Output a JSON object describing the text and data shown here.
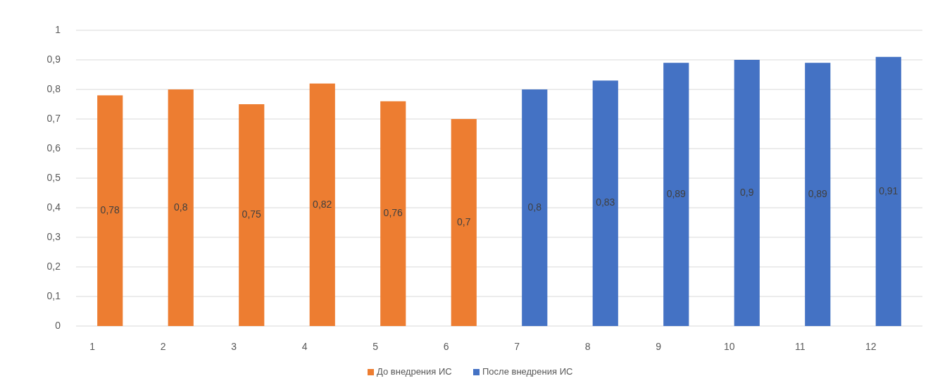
{
  "chart_data": {
    "type": "bar",
    "categories": [
      "1",
      "2",
      "3",
      "4",
      "5",
      "6",
      "7",
      "8",
      "9",
      "10",
      "11",
      "12"
    ],
    "series": [
      {
        "name": "До внедрения ИС",
        "color": "#ed7d31",
        "values": [
          0.78,
          0.8,
          0.75,
          0.82,
          0.76,
          0.7,
          null,
          null,
          null,
          null,
          null,
          null
        ],
        "value_labels": [
          "0,78",
          "0,8",
          "0,75",
          "0,82",
          "0,76",
          "0,7",
          null,
          null,
          null,
          null,
          null,
          null
        ]
      },
      {
        "name": "После внедрения ИС",
        "color": "#4472c4",
        "values": [
          null,
          null,
          null,
          null,
          null,
          null,
          0.8,
          0.83,
          0.89,
          0.9,
          0.89,
          0.91
        ],
        "value_labels": [
          null,
          null,
          null,
          null,
          null,
          null,
          "0,8",
          "0,83",
          "0,89",
          "0,9",
          "0,89",
          "0,91"
        ]
      }
    ],
    "ylim": [
      0,
      1
    ],
    "yticks": [
      0,
      {
        "value": 0.1,
        "label": "0,1"
      },
      {
        "value": 0.2,
        "label": "0,2"
      },
      {
        "value": 0.3,
        "label": "0,3"
      },
      {
        "value": 0.4,
        "label": "0,4"
      },
      {
        "value": 0.5,
        "label": "0,5"
      },
      {
        "value": 0.6,
        "label": "0,6"
      },
      {
        "value": 0.7,
        "label": "0,7"
      },
      {
        "value": 0.8,
        "label": "0,8"
      },
      {
        "value": 0.9,
        "label": "0,9"
      },
      1
    ],
    "grid": "y",
    "legend": "bottom"
  }
}
